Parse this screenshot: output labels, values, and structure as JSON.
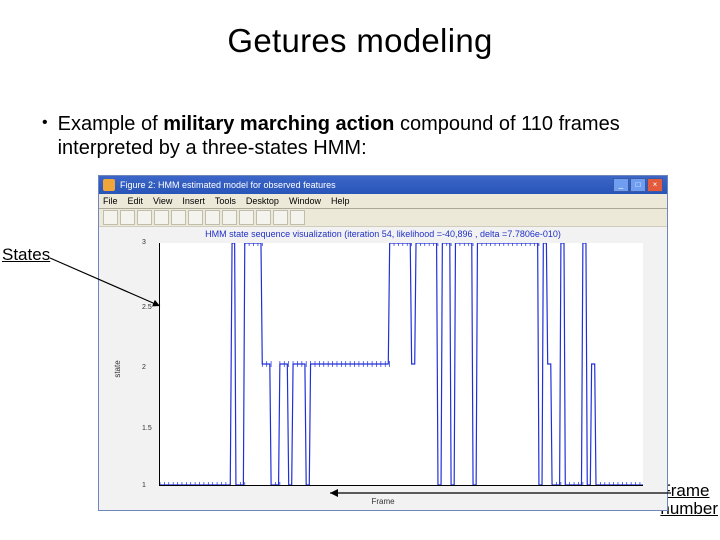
{
  "title": "Getures modeling",
  "bullet": {
    "pre": "Example of ",
    "bold": "military marching action",
    "post": " compound of 110 frames interpreted by a three-states HMM:"
  },
  "labels": {
    "states": "States",
    "frame_line1": "Frame",
    "frame_line2": "number"
  },
  "window": {
    "title": "Figure 2: HMM estimated model for observed features",
    "btn_min": "_",
    "btn_max": "□",
    "btn_close": "×",
    "menu": [
      "File",
      "Edit",
      "View",
      "Insert",
      "Tools",
      "Desktop",
      "Window",
      "Help"
    ],
    "chart_title": "HMM state sequence visualization (iteration 54, likelihood =-40,896 , delta =7.7806e-010)",
    "ylabel": "state",
    "xlabel": "Frame",
    "yticks": [
      "1",
      "1.5",
      "2",
      "2.5",
      "3"
    ]
  },
  "series": {
    "color": "#2030d8",
    "width": 1.2,
    "xlim": [
      0,
      110
    ],
    "ylim": [
      1,
      3
    ],
    "points": [
      [
        0,
        1
      ],
      [
        16,
        1
      ],
      [
        16.4,
        3
      ],
      [
        17,
        3
      ],
      [
        17.3,
        1
      ],
      [
        19,
        1
      ],
      [
        19.3,
        3
      ],
      [
        23,
        3
      ],
      [
        23.3,
        2
      ],
      [
        25,
        2
      ],
      [
        25.3,
        1
      ],
      [
        27,
        1
      ],
      [
        27.3,
        2
      ],
      [
        29,
        2
      ],
      [
        29.3,
        1
      ],
      [
        30,
        1
      ],
      [
        30.3,
        2
      ],
      [
        33,
        2
      ],
      [
        33.3,
        1
      ],
      [
        34,
        1
      ],
      [
        34.3,
        2
      ],
      [
        52,
        2
      ],
      [
        52.3,
        3
      ],
      [
        57,
        3
      ],
      [
        57.3,
        2
      ],
      [
        58,
        2
      ],
      [
        58.3,
        3
      ],
      [
        63,
        3
      ],
      [
        63.3,
        1
      ],
      [
        64,
        1
      ],
      [
        64.3,
        3
      ],
      [
        66,
        3
      ],
      [
        66.3,
        1
      ],
      [
        67,
        1
      ],
      [
        67.3,
        3
      ],
      [
        71,
        3
      ],
      [
        71.3,
        1
      ],
      [
        72,
        1
      ],
      [
        72.3,
        3
      ],
      [
        86,
        3
      ],
      [
        86.3,
        1
      ],
      [
        87,
        1
      ],
      [
        87.3,
        3
      ],
      [
        88,
        3
      ],
      [
        88.3,
        2
      ],
      [
        89,
        2
      ],
      [
        89.3,
        1
      ],
      [
        91,
        1
      ],
      [
        91.3,
        3
      ],
      [
        92,
        3
      ],
      [
        92.3,
        1
      ],
      [
        96,
        1
      ],
      [
        96.3,
        3
      ],
      [
        97,
        3
      ],
      [
        97.3,
        1
      ],
      [
        98,
        1
      ],
      [
        98.3,
        2
      ],
      [
        99,
        2
      ],
      [
        99.3,
        1
      ],
      [
        110,
        1
      ]
    ]
  }
}
